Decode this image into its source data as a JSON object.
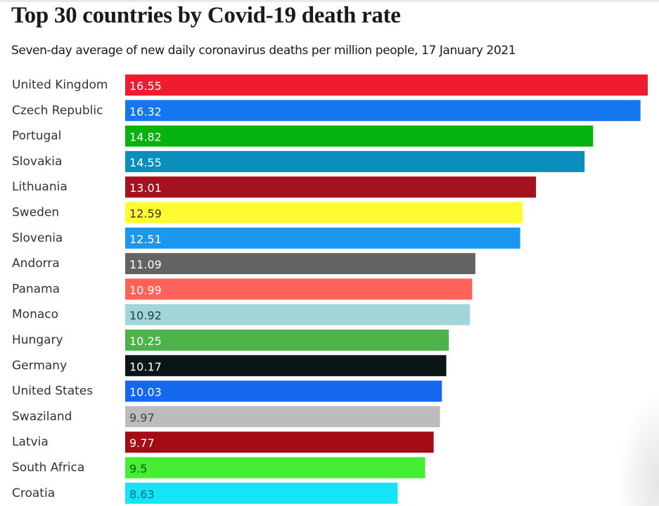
{
  "chart_data": {
    "type": "bar",
    "orientation": "horizontal",
    "title": "Top 30 countries by Covid-19 death rate",
    "subtitle": "Seven-day average of new daily coronavirus deaths per million people, 17 January 2021",
    "xlabel": "",
    "ylabel": "",
    "xlim": [
      0,
      16.55
    ],
    "grid": false,
    "legend": "none",
    "categories": [
      "United Kingdom",
      "Czech Republic",
      "Portugal",
      "Slovakia",
      "Lithuania",
      "Sweden",
      "Slovenia",
      "Andorra",
      "Panama",
      "Monaco",
      "Hungary",
      "Germany",
      "United States",
      "Swaziland",
      "Latvia",
      "South Africa",
      "Croatia"
    ],
    "values": [
      16.55,
      16.32,
      14.82,
      14.55,
      13.01,
      12.59,
      12.51,
      11.09,
      10.99,
      10.92,
      10.25,
      10.17,
      10.03,
      9.97,
      9.77,
      9.5,
      8.63
    ],
    "value_labels": [
      "16.55",
      "16.32",
      "14.82",
      "14.55",
      "13.01",
      "12.59",
      "12.51",
      "11.09",
      "10.99",
      "10.92",
      "10.25",
      "10.17",
      "10.03",
      "9.97",
      "9.77",
      "9.5",
      "8.63"
    ],
    "bar_colors": [
      "#ee1c2e",
      "#1477ee",
      "#05b20e",
      "#0a8fbd",
      "#a3121d",
      "#fffb2e",
      "#1a98f0",
      "#636363",
      "#ff6259",
      "#a2d5d7",
      "#4bb347",
      "#0c1516",
      "#1468ee",
      "#bcbcbc",
      "#a40b12",
      "#46ee33",
      "#14e3f8"
    ],
    "label_colors": [
      "#ffffff",
      "#ffffff",
      "#ffffff",
      "#ffffff",
      "#ffffff",
      "#333333",
      "#ffffff",
      "#ffffff",
      "#ffffff",
      "#1f3d40",
      "#ffffff",
      "#ffffff",
      "#ffffff",
      "#444444",
      "#ffffff",
      "#115511",
      "#0d6a7a"
    ]
  }
}
